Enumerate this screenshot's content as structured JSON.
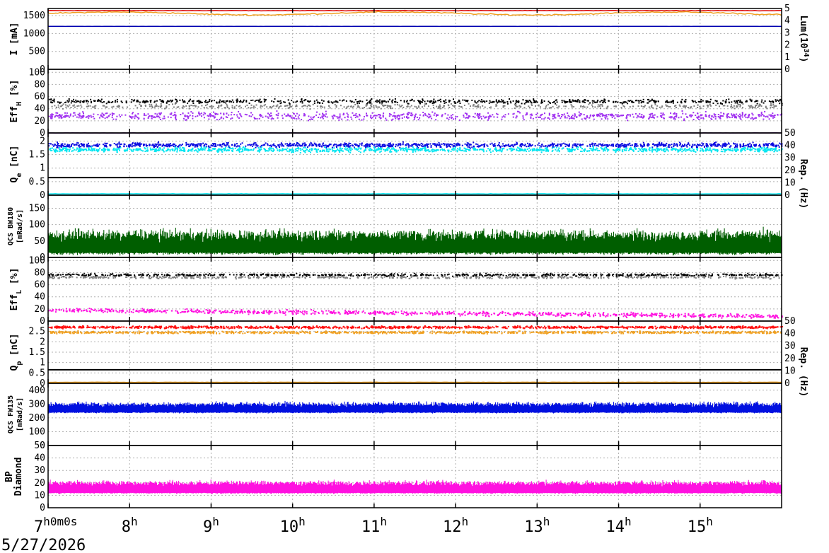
{
  "chart_data": {
    "type": "line",
    "x_axis": {
      "range_hours": [
        7,
        16
      ],
      "ticks": [
        {
          "hour": 7,
          "label": "7",
          "suffix": "h",
          "extra": "0m0s"
        },
        {
          "hour": 8,
          "label": "8",
          "suffix": "h",
          "extra": ""
        },
        {
          "hour": 9,
          "label": "9",
          "suffix": "h",
          "extra": ""
        },
        {
          "hour": 10,
          "label": "10",
          "suffix": "h",
          "extra": ""
        },
        {
          "hour": 11,
          "label": "11",
          "suffix": "h",
          "extra": ""
        },
        {
          "hour": 12,
          "label": "12",
          "suffix": "h",
          "extra": ""
        },
        {
          "hour": 13,
          "label": "13",
          "suffix": "h",
          "extra": ""
        },
        {
          "hour": 14,
          "label": "14",
          "suffix": "h",
          "extra": ""
        },
        {
          "hour": 15,
          "label": "15",
          "suffix": "h",
          "extra": ""
        }
      ],
      "date": "5/27/2026"
    },
    "panels": [
      {
        "id": "current",
        "ylabel_main": "I [mA]",
        "ylabel_sub": "",
        "ylim": [
          0,
          1700
        ],
        "yticks": [
          0,
          500,
          1000,
          1500
        ],
        "right_axis": {
          "label_parts": [
            "Lum(10",
            "34",
            ")"
          ],
          "ylim": [
            0,
            5
          ],
          "ticks": [
            0,
            1,
            2,
            3,
            4,
            5
          ]
        },
        "series": [
          {
            "kind": "line",
            "color": "#dc0000",
            "level": 1640,
            "noise": 10
          },
          {
            "kind": "line",
            "color": "#f0a020",
            "level": 1560,
            "noise": 25,
            "wander": 40
          },
          {
            "kind": "line",
            "color": "#0000b0",
            "level": 1200,
            "noise": 3
          }
        ]
      },
      {
        "id": "eff_h",
        "ylabel_main": "Eff",
        "ylabel_sub": "H",
        "ylabel_tail": " [%]",
        "ylim": [
          0,
          105
        ],
        "yticks": [
          0,
          20,
          40,
          60,
          80,
          100
        ],
        "series": [
          {
            "kind": "scatter",
            "color": "#000000",
            "level": 52,
            "noise": 5,
            "n": 700
          },
          {
            "kind": "scatter",
            "color": "#808080",
            "level": 44,
            "noise": 5,
            "n": 500
          },
          {
            "kind": "scatter",
            "color": "#a030f0",
            "level": 28,
            "noise": 9,
            "n": 900
          },
          {
            "kind": "line",
            "color": "#a030f0",
            "level": 0,
            "noise": 0.4
          }
        ]
      },
      {
        "id": "q_e",
        "ylabel_main": "Q",
        "ylabel_sub": "e",
        "ylabel_tail": " [nC]",
        "ylim": [
          0,
          2.3
        ],
        "yticks": [
          0,
          0.5,
          1,
          1.5,
          2
        ],
        "break_at": 0.65,
        "right_axis": {
          "label": "Rep. (Hz)",
          "ylim": [
            0,
            50
          ],
          "ticks": [
            0,
            10,
            20,
            30,
            40,
            50
          ]
        },
        "series": [
          {
            "kind": "scatter",
            "color": "#0a0ae0",
            "level": 1.85,
            "noise": 0.12,
            "n": 1200
          },
          {
            "kind": "scatter",
            "color": "#00e5f0",
            "level": 1.68,
            "noise": 0.12,
            "n": 1200
          },
          {
            "kind": "line",
            "color": "#00e5f0",
            "level": 0.05,
            "noise": 0.01
          }
        ]
      },
      {
        "id": "qcs_bw180",
        "ylabel_main": "QCS BW180",
        "ylabel_sub": "[mRad/s]",
        "ylim": [
          0,
          190
        ],
        "yticks": [
          0,
          50,
          100,
          150
        ],
        "series": [
          {
            "kind": "bars",
            "color": "#005e00",
            "level": 15,
            "top": 70,
            "noise": 25,
            "n": 1000
          }
        ]
      },
      {
        "id": "eff_l",
        "ylabel_main": "Eff",
        "ylabel_sub": "L",
        "ylabel_tail": " [%]",
        "ylim": [
          0,
          105
        ],
        "yticks": [
          0,
          20,
          40,
          60,
          80,
          100
        ],
        "series": [
          {
            "kind": "scatter",
            "color": "#000000",
            "level": 76,
            "noise": 3,
            "n": 700
          },
          {
            "kind": "scatter",
            "color": "#808080",
            "level": 72,
            "noise": 3,
            "n": 500
          },
          {
            "kind": "scatter",
            "color": "#ff10e0",
            "level": 18,
            "noise": 5,
            "n": 900,
            "trend": -10
          }
        ]
      },
      {
        "id": "q_p",
        "ylabel_main": "Q",
        "ylabel_sub": "p",
        "ylabel_tail": " [nC]",
        "ylim": [
          0,
          3.0
        ],
        "yticks": [
          0,
          0.5,
          1,
          1.5,
          2,
          2.5
        ],
        "break_at": 0.65,
        "right_axis": {
          "label": "Rep. (Hz)",
          "ylim": [
            0,
            50
          ],
          "ticks": [
            0,
            10,
            20,
            30,
            40,
            50
          ]
        },
        "series": [
          {
            "kind": "scatter",
            "color": "#ff1010",
            "level": 2.7,
            "noise": 0.08,
            "n": 1200
          },
          {
            "kind": "scatter",
            "color": "#f0a020",
            "level": 2.45,
            "noise": 0.08,
            "n": 1000
          },
          {
            "kind": "line",
            "color": "#f0a020",
            "level": 0.05,
            "noise": 0.01
          }
        ]
      },
      {
        "id": "qcs_fw135",
        "ylabel_main": "QCS FW135",
        "ylabel_sub": "[mRad/s]",
        "ylim": [
          0,
          450
        ],
        "yticks": [
          0,
          100,
          200,
          300,
          400
        ],
        "series": [
          {
            "kind": "bars",
            "color": "#0010e0",
            "level": 240,
            "top": 300,
            "noise": 25,
            "n": 1000
          }
        ]
      },
      {
        "id": "bp_diamond",
        "ylabel_main": "BP",
        "ylabel_sub": "Diamond",
        "ylim": [
          0,
          50
        ],
        "yticks": [
          0,
          10,
          20,
          30,
          40,
          50
        ],
        "series": [
          {
            "kind": "bars",
            "color": "#ff10e0",
            "level": 12,
            "top": 20,
            "noise": 3,
            "n": 1000
          }
        ]
      }
    ]
  }
}
